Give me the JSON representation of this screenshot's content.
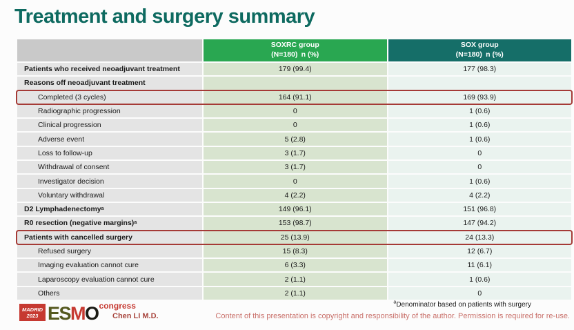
{
  "slide": {
    "title": "Treatment and surgery summary",
    "presenter": "Chen LI M.D.",
    "footnote_marker": "a",
    "footnote": "Denominator based on patients with surgery",
    "copyright": "Content of this presentation is copyright and responsibility of the author. Permission is required for re-use."
  },
  "logo": {
    "city": "MADRID",
    "year": "2023",
    "letters_es": "ES",
    "letter_m": "M",
    "letter_o": "O",
    "suffix": "congress"
  },
  "table": {
    "header": {
      "soxrc_line1": "SOXRC group",
      "soxrc_line2": "(N=180) n (%)",
      "sox_line1": "SOX group",
      "sox_line2": "(N=180) n (%)"
    },
    "rows": [
      {
        "label": "Patients who received neoadjuvant treatment",
        "sup": "",
        "soxrc": "179 (99.4)",
        "sox": "177 (98.3)",
        "style": "bold",
        "highlight": false
      },
      {
        "label": "Reasons off neoadjuvant treatment",
        "sup": "",
        "soxrc": "",
        "sox": "",
        "style": "bold",
        "highlight": false
      },
      {
        "label": "Completed (3 cycles)",
        "sup": "",
        "soxrc": "164 (91.1)",
        "sox": "169 (93.9)",
        "style": "indent",
        "highlight": true
      },
      {
        "label": "Radiographic progression",
        "sup": "",
        "soxrc": "0",
        "sox": "1 (0.6)",
        "style": "indent",
        "highlight": false
      },
      {
        "label": "Clinical progression",
        "sup": "",
        "soxrc": "0",
        "sox": "1 (0.6)",
        "style": "indent",
        "highlight": false
      },
      {
        "label": "Adverse event",
        "sup": "",
        "soxrc": "5 (2.8)",
        "sox": "1 (0.6)",
        "style": "indent",
        "highlight": false
      },
      {
        "label": "Loss to follow-up",
        "sup": "",
        "soxrc": "3 (1.7)",
        "sox": "0",
        "style": "indent",
        "highlight": false
      },
      {
        "label": "Withdrawal of consent",
        "sup": "",
        "soxrc": "3 (1.7)",
        "sox": "0",
        "style": "indent",
        "highlight": false
      },
      {
        "label": "Investigator decision",
        "sup": "",
        "soxrc": "0",
        "sox": "1 (0.6)",
        "style": "indent",
        "highlight": false
      },
      {
        "label": "Voluntary withdrawal",
        "sup": "",
        "soxrc": "4 (2.2)",
        "sox": "4 (2.2)",
        "style": "indent",
        "highlight": false
      },
      {
        "label": "D2 Lymphadenectomy",
        "sup": "a",
        "soxrc": "149 (96.1)",
        "sox": "151 (96.8)",
        "style": "bold",
        "highlight": false
      },
      {
        "label": "R0 resection (negative margins)",
        "sup": "a",
        "soxrc": "153 (98.7)",
        "sox": "147 (94.2)",
        "style": "bold",
        "highlight": false
      },
      {
        "label": "Patients with cancelled surgery",
        "sup": "",
        "soxrc": "25 (13.9)",
        "sox": "24 (13.3)",
        "style": "bold",
        "highlight": true
      },
      {
        "label": "Refused surgery",
        "sup": "",
        "soxrc": "15 (8.3)",
        "sox": "12 (6.7)",
        "style": "indent",
        "highlight": false
      },
      {
        "label": "Imaging evaluation cannot cure",
        "sup": "",
        "soxrc": "6 (3.3)",
        "sox": "11 (6.1)",
        "style": "indent",
        "highlight": false
      },
      {
        "label": "Laparoscopy evaluation cannot cure",
        "sup": "",
        "soxrc": "2 (1.1)",
        "sox": "1 (0.6)",
        "style": "indent",
        "highlight": false
      },
      {
        "label": "Others",
        "sup": "",
        "soxrc": "2 (1.1)",
        "sox": "0",
        "style": "indent",
        "highlight": false
      }
    ]
  },
  "colors": {
    "title": "#0E6A60",
    "header_soxrc": "#29A751",
    "header_sox": "#156E68",
    "header_empty": "#C9C9C9",
    "cell_label_bg": "#E4E4E4",
    "cell_soxrc_bg": "#D8E4CF",
    "cell_sox_bg": "#EAF3EF",
    "highlight_border": "#A53A36",
    "presenter": "#A8463E",
    "copyright": "#C9706A",
    "logo_red": "#C63931",
    "logo_olive": "#55591F",
    "logo_dark": "#1A1A14"
  }
}
